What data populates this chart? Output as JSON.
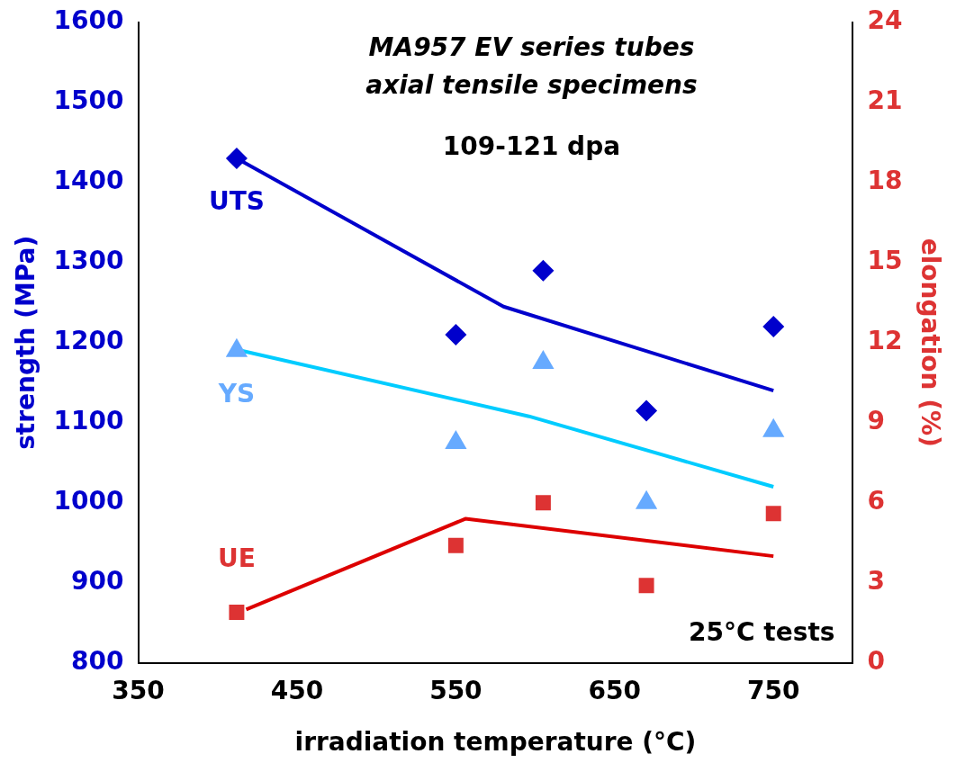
{
  "chart_data": {
    "type": "scatter",
    "title": "MA957 EV series tubes\naxial tensile specimens",
    "subtitle": "109-121 dpa",
    "xlabel": "irradiation temperature (°C)",
    "ylabel": "strength (MPa)",
    "y2label": "elongation (%)",
    "annotations": [
      "25°C tests"
    ],
    "xlim": [
      350,
      800
    ],
    "xticks": [
      350,
      450,
      550,
      650,
      750
    ],
    "ylim": [
      800,
      1600
    ],
    "yticks": [
      800,
      900,
      1000,
      1100,
      1200,
      1300,
      1400,
      1500,
      1600
    ],
    "y2lim": [
      0,
      24
    ],
    "y2ticks": [
      0,
      3,
      6,
      9,
      12,
      15,
      18,
      21,
      24
    ],
    "grid": false,
    "legend": false,
    "series": [
      {
        "name": "UTS",
        "type": "scatter",
        "marker": "diamond",
        "color": "#0000cc",
        "x": [
          412,
          550,
          605,
          670,
          750
        ],
        "values": [
          1430,
          1210,
          1290,
          1115,
          1220
        ]
      },
      {
        "type": "line",
        "marker": "none",
        "color": "#0000cc",
        "x": [
          412,
          580,
          750
        ],
        "values": [
          1430,
          1245,
          1140
        ]
      },
      {
        "name": "YS",
        "type": "scatter",
        "marker": "triangle",
        "color": "#66aaff",
        "x": [
          412,
          550,
          605,
          670,
          750
        ],
        "values": [
          1190,
          1075,
          1175,
          1000,
          1090
        ]
      },
      {
        "type": "line",
        "marker": "none",
        "color": "#00ccff",
        "x": [
          415,
          596,
          750
        ],
        "values": [
          1190,
          1108,
          1020
        ]
      },
      {
        "name": "UE",
        "type": "scatter",
        "axis": "y2",
        "marker": "square",
        "color": "#dd3333",
        "x": [
          412,
          550,
          605,
          670,
          750
        ],
        "values": [
          1.9,
          4.4,
          6.0,
          2.9,
          5.6
        ]
      },
      {
        "type": "line",
        "axis": "y2",
        "marker": "none",
        "color": "#dd0000",
        "x": [
          418,
          556,
          750
        ],
        "values": [
          2.0,
          5.4,
          4.0
        ]
      }
    ]
  }
}
